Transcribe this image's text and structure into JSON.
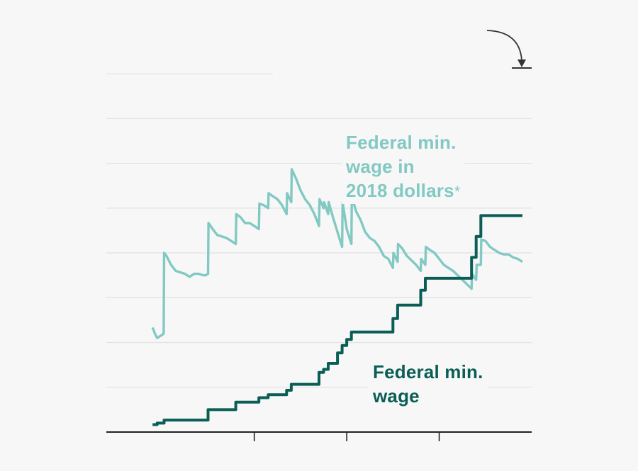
{
  "chart_data": {
    "type": "line",
    "title": "",
    "xlabel": "",
    "ylabel": "",
    "xlim": [
      1928,
      2020
    ],
    "ylim": [
      0,
      13
    ],
    "gridlines_y": [
      1.5,
      3,
      4.5,
      6,
      7.5,
      9,
      10.5,
      12
    ],
    "x_ticks": [
      1960,
      1980,
      2000
    ],
    "grid": true,
    "colors": {
      "real": "#82c9c3",
      "nominal": "#0b5e55",
      "grid": "#e3e3e3",
      "axis": "#222222",
      "arrow": "#333333"
    },
    "series": [
      {
        "name": "Federal min. wage in 2018 dollars*",
        "key": "real",
        "points": [
          [
            1938,
            3.5
          ],
          [
            1938.5,
            3.3
          ],
          [
            1939,
            3.15
          ],
          [
            1939.5,
            3.2
          ],
          [
            1940,
            3.25
          ],
          [
            1940.4,
            3.3
          ],
          [
            1940.5,
            6.0
          ],
          [
            1941,
            5.9
          ],
          [
            1942,
            5.6
          ],
          [
            1943,
            5.4
          ],
          [
            1944,
            5.35
          ],
          [
            1945,
            5.3
          ],
          [
            1946,
            5.2
          ],
          [
            1947,
            5.3
          ],
          [
            1948,
            5.3
          ],
          [
            1949,
            5.25
          ],
          [
            1949.5,
            5.25
          ],
          [
            1950,
            5.3
          ],
          [
            1950.1,
            7.0
          ],
          [
            1951,
            6.8
          ],
          [
            1952,
            6.6
          ],
          [
            1953,
            6.55
          ],
          [
            1954,
            6.5
          ],
          [
            1955,
            6.4
          ],
          [
            1956,
            6.3
          ],
          [
            1956.1,
            7.3
          ],
          [
            1957,
            7.2
          ],
          [
            1958,
            7.0
          ],
          [
            1959,
            7.0
          ],
          [
            1960,
            6.9
          ],
          [
            1961,
            6.8
          ],
          [
            1961.1,
            7.65
          ],
          [
            1962,
            7.6
          ],
          [
            1963,
            7.5
          ],
          [
            1963.1,
            8.0
          ],
          [
            1964,
            7.9
          ],
          [
            1965,
            7.8
          ],
          [
            1966,
            7.6
          ],
          [
            1967,
            7.3
          ],
          [
            1967.1,
            8.0
          ],
          [
            1968,
            7.7
          ],
          [
            1968.1,
            8.8
          ],
          [
            1969,
            8.5
          ],
          [
            1970,
            8.1
          ],
          [
            1971,
            7.8
          ],
          [
            1972,
            7.6
          ],
          [
            1973,
            7.3
          ],
          [
            1974,
            6.9
          ],
          [
            1974.1,
            7.8
          ],
          [
            1975,
            7.5
          ],
          [
            1975.1,
            7.7
          ],
          [
            1976,
            7.3
          ],
          [
            1976.1,
            7.7
          ],
          [
            1977,
            7.2
          ],
          [
            1978,
            6.7
          ],
          [
            1979,
            6.2
          ],
          [
            1979.1,
            7.7
          ],
          [
            1980,
            6.8
          ],
          [
            1981,
            6.3
          ],
          [
            1981.1,
            7.9
          ],
          [
            1982,
            7.4
          ],
          [
            1983,
            7.1
          ],
          [
            1984,
            6.7
          ],
          [
            1985,
            6.5
          ],
          [
            1986,
            6.4
          ],
          [
            1987,
            6.2
          ],
          [
            1988,
            5.9
          ],
          [
            1989,
            5.8
          ],
          [
            1990,
            5.5
          ],
          [
            1990.1,
            6.0
          ],
          [
            1991,
            5.7
          ],
          [
            1991.1,
            6.3
          ],
          [
            1992,
            6.15
          ],
          [
            1993,
            5.9
          ],
          [
            1994,
            5.75
          ],
          [
            1995,
            5.6
          ],
          [
            1996,
            5.4
          ],
          [
            1996.1,
            5.8
          ],
          [
            1997,
            5.6
          ],
          [
            1997.1,
            6.2
          ],
          [
            1998,
            6.1
          ],
          [
            1999,
            6.0
          ],
          [
            2000,
            5.8
          ],
          [
            2001,
            5.6
          ],
          [
            2002,
            5.5
          ],
          [
            2003,
            5.4
          ],
          [
            2004,
            5.25
          ],
          [
            2005,
            5.1
          ],
          [
            2006,
            4.95
          ],
          [
            2007,
            4.8
          ],
          [
            2007.1,
            5.3
          ],
          [
            2008,
            5.1
          ],
          [
            2008.1,
            5.6
          ],
          [
            2009,
            5.6
          ],
          [
            2009.1,
            6.45
          ],
          [
            2010,
            6.4
          ],
          [
            2011,
            6.2
          ],
          [
            2012,
            6.1
          ],
          [
            2013,
            6.0
          ],
          [
            2014,
            5.95
          ],
          [
            2015,
            5.95
          ],
          [
            2016,
            5.85
          ],
          [
            2017,
            5.8
          ],
          [
            2018,
            5.7
          ]
        ]
      },
      {
        "name": "Federal min. wage",
        "key": "nominal",
        "points": [
          [
            1938,
            0.25
          ],
          [
            1939,
            0.25
          ],
          [
            1939,
            0.3
          ],
          [
            1940,
            0.3
          ],
          [
            1940.5,
            0.3
          ],
          [
            1940.5,
            0.4
          ],
          [
            1949,
            0.4
          ],
          [
            1950,
            0.4
          ],
          [
            1950,
            0.75
          ],
          [
            1956,
            0.75
          ],
          [
            1956,
            1.0
          ],
          [
            1961,
            1.0
          ],
          [
            1961,
            1.15
          ],
          [
            1963,
            1.15
          ],
          [
            1963,
            1.25
          ],
          [
            1967,
            1.25
          ],
          [
            1967,
            1.4
          ],
          [
            1968,
            1.4
          ],
          [
            1968,
            1.6
          ],
          [
            1974,
            1.6
          ],
          [
            1974,
            2.0
          ],
          [
            1975,
            2.0
          ],
          [
            1975,
            2.1
          ],
          [
            1976,
            2.1
          ],
          [
            1976,
            2.3
          ],
          [
            1978,
            2.3
          ],
          [
            1978,
            2.65
          ],
          [
            1979,
            2.65
          ],
          [
            1979,
            2.9
          ],
          [
            1980,
            2.9
          ],
          [
            1980,
            3.1
          ],
          [
            1981,
            3.1
          ],
          [
            1981,
            3.35
          ],
          [
            1990,
            3.35
          ],
          [
            1990,
            3.8
          ],
          [
            1991,
            3.8
          ],
          [
            1991,
            4.25
          ],
          [
            1996,
            4.25
          ],
          [
            1996,
            4.75
          ],
          [
            1997,
            4.75
          ],
          [
            1997,
            5.15
          ],
          [
            2007,
            5.15
          ],
          [
            2007,
            5.85
          ],
          [
            2008,
            5.85
          ],
          [
            2008,
            6.55
          ],
          [
            2009,
            6.55
          ],
          [
            2009,
            7.25
          ],
          [
            2018,
            7.25
          ]
        ]
      }
    ],
    "annotations": [
      {
        "key": "real",
        "lines": [
          "Federal min.",
          "wage in",
          "2018 dollars"
        ],
        "marker": "*"
      },
      {
        "key": "nominal",
        "lines": [
          "Federal min.",
          "wage"
        ]
      }
    ]
  }
}
